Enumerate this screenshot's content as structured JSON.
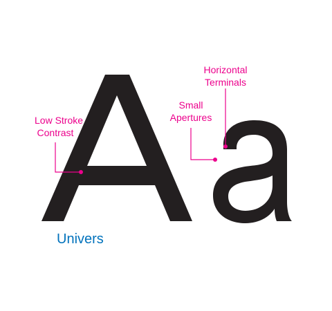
{
  "colors": {
    "glyph": "#231f20",
    "annotation": "#ec008c",
    "typeface_name": "#0072bc"
  },
  "glyphs": {
    "upper": "A",
    "lower": "a"
  },
  "annotations": [
    {
      "id": "low-stroke-contrast",
      "lines": [
        "Low Stroke",
        "Contrast"
      ]
    },
    {
      "id": "small-apertures",
      "lines": [
        "Small",
        "Apertures"
      ]
    },
    {
      "id": "horizontal-terminals",
      "lines": [
        "Horizontal",
        "Terminals"
      ]
    }
  ],
  "typeface": {
    "name": "Univers"
  }
}
